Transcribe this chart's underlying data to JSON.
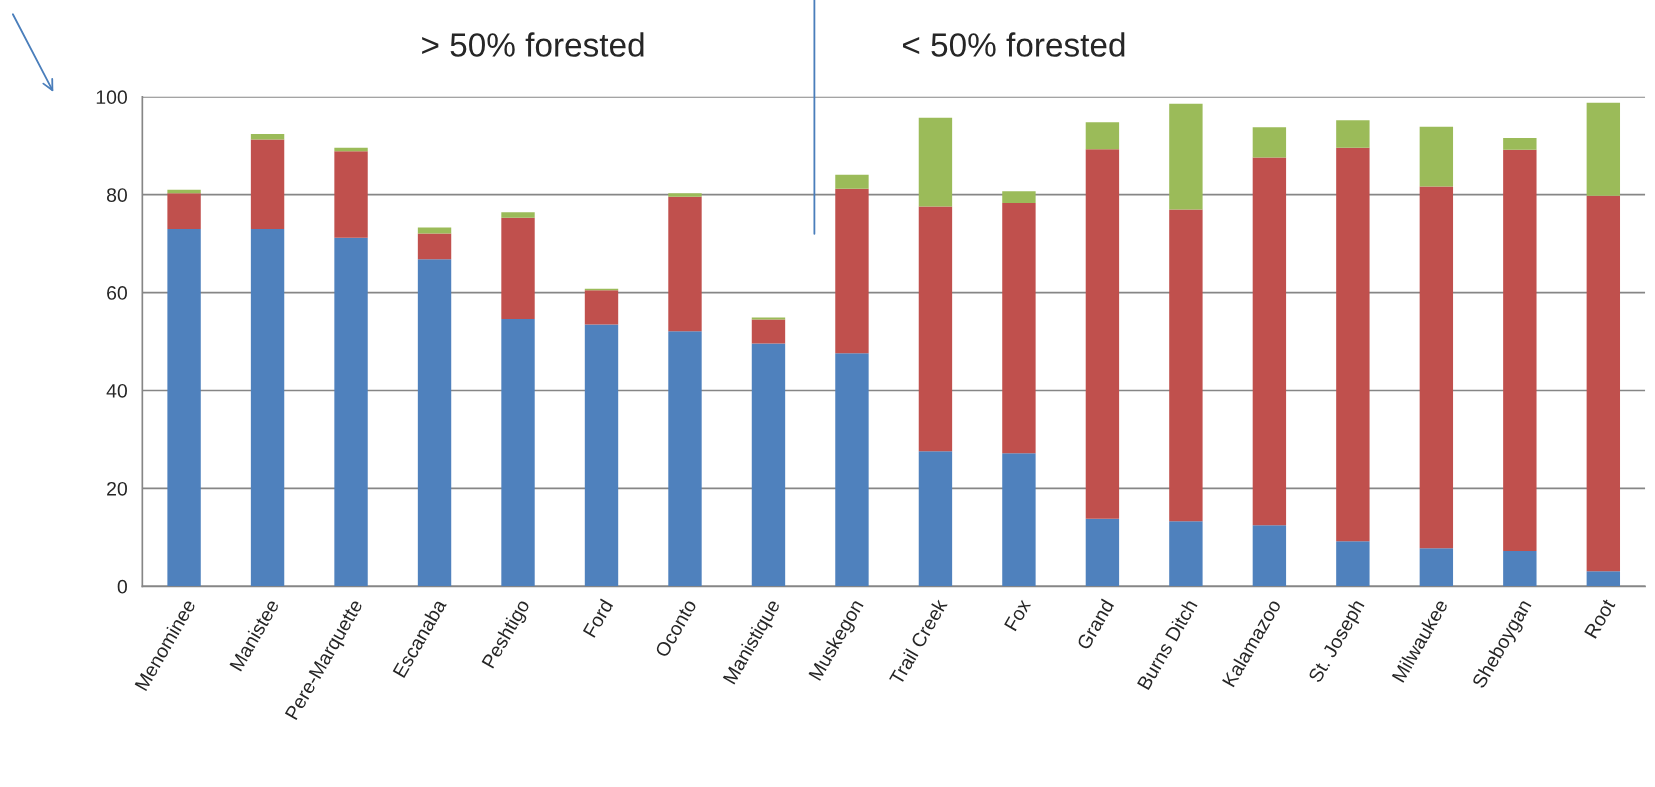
{
  "chart_data": {
    "type": "bar",
    "stacked": true,
    "grid": "y",
    "legend": false,
    "categories": [
      "Menominee",
      "Manistee",
      "Pere-Marquette",
      "Escanaba",
      "Peshtigo",
      "Ford",
      "Oconto",
      "Manistique",
      "Muskegon",
      "Trail Creek",
      "Fox",
      "Grand",
      "Burns Ditch",
      "Kalamazoo",
      "St. Joseph",
      "Milwaukee",
      "Sheboygan",
      "Root"
    ],
    "series": [
      {
        "color": "#4f81bd",
        "values": [
          73,
          73,
          71.2,
          66.8,
          54.6,
          53.5,
          52.1,
          49.6,
          47.6,
          27.6,
          27.2,
          13.8,
          13.3,
          12.5,
          9.2,
          7.8,
          7.2,
          3.1
        ]
      },
      {
        "color": "#c0504d",
        "values": [
          7.3,
          18.3,
          17.7,
          5.3,
          20.7,
          7,
          27.5,
          4.9,
          33.6,
          50,
          51.1,
          75.5,
          63.7,
          75.1,
          80.4,
          73.9,
          82,
          76.7
        ]
      },
      {
        "color": "#9bbb59",
        "values": [
          0.7,
          1.1,
          0.7,
          1.2,
          1.1,
          0.3,
          0.7,
          0.4,
          2.9,
          18.1,
          2.4,
          5.5,
          21.6,
          6.2,
          5.6,
          12.2,
          2.4,
          19
        ]
      }
    ],
    "ylim": [
      0,
      100
    ],
    "yticks": [
      0,
      20,
      40,
      60,
      80,
      100
    ],
    "annotations": [
      "> 50% forested",
      "< 50% forested"
    ]
  }
}
